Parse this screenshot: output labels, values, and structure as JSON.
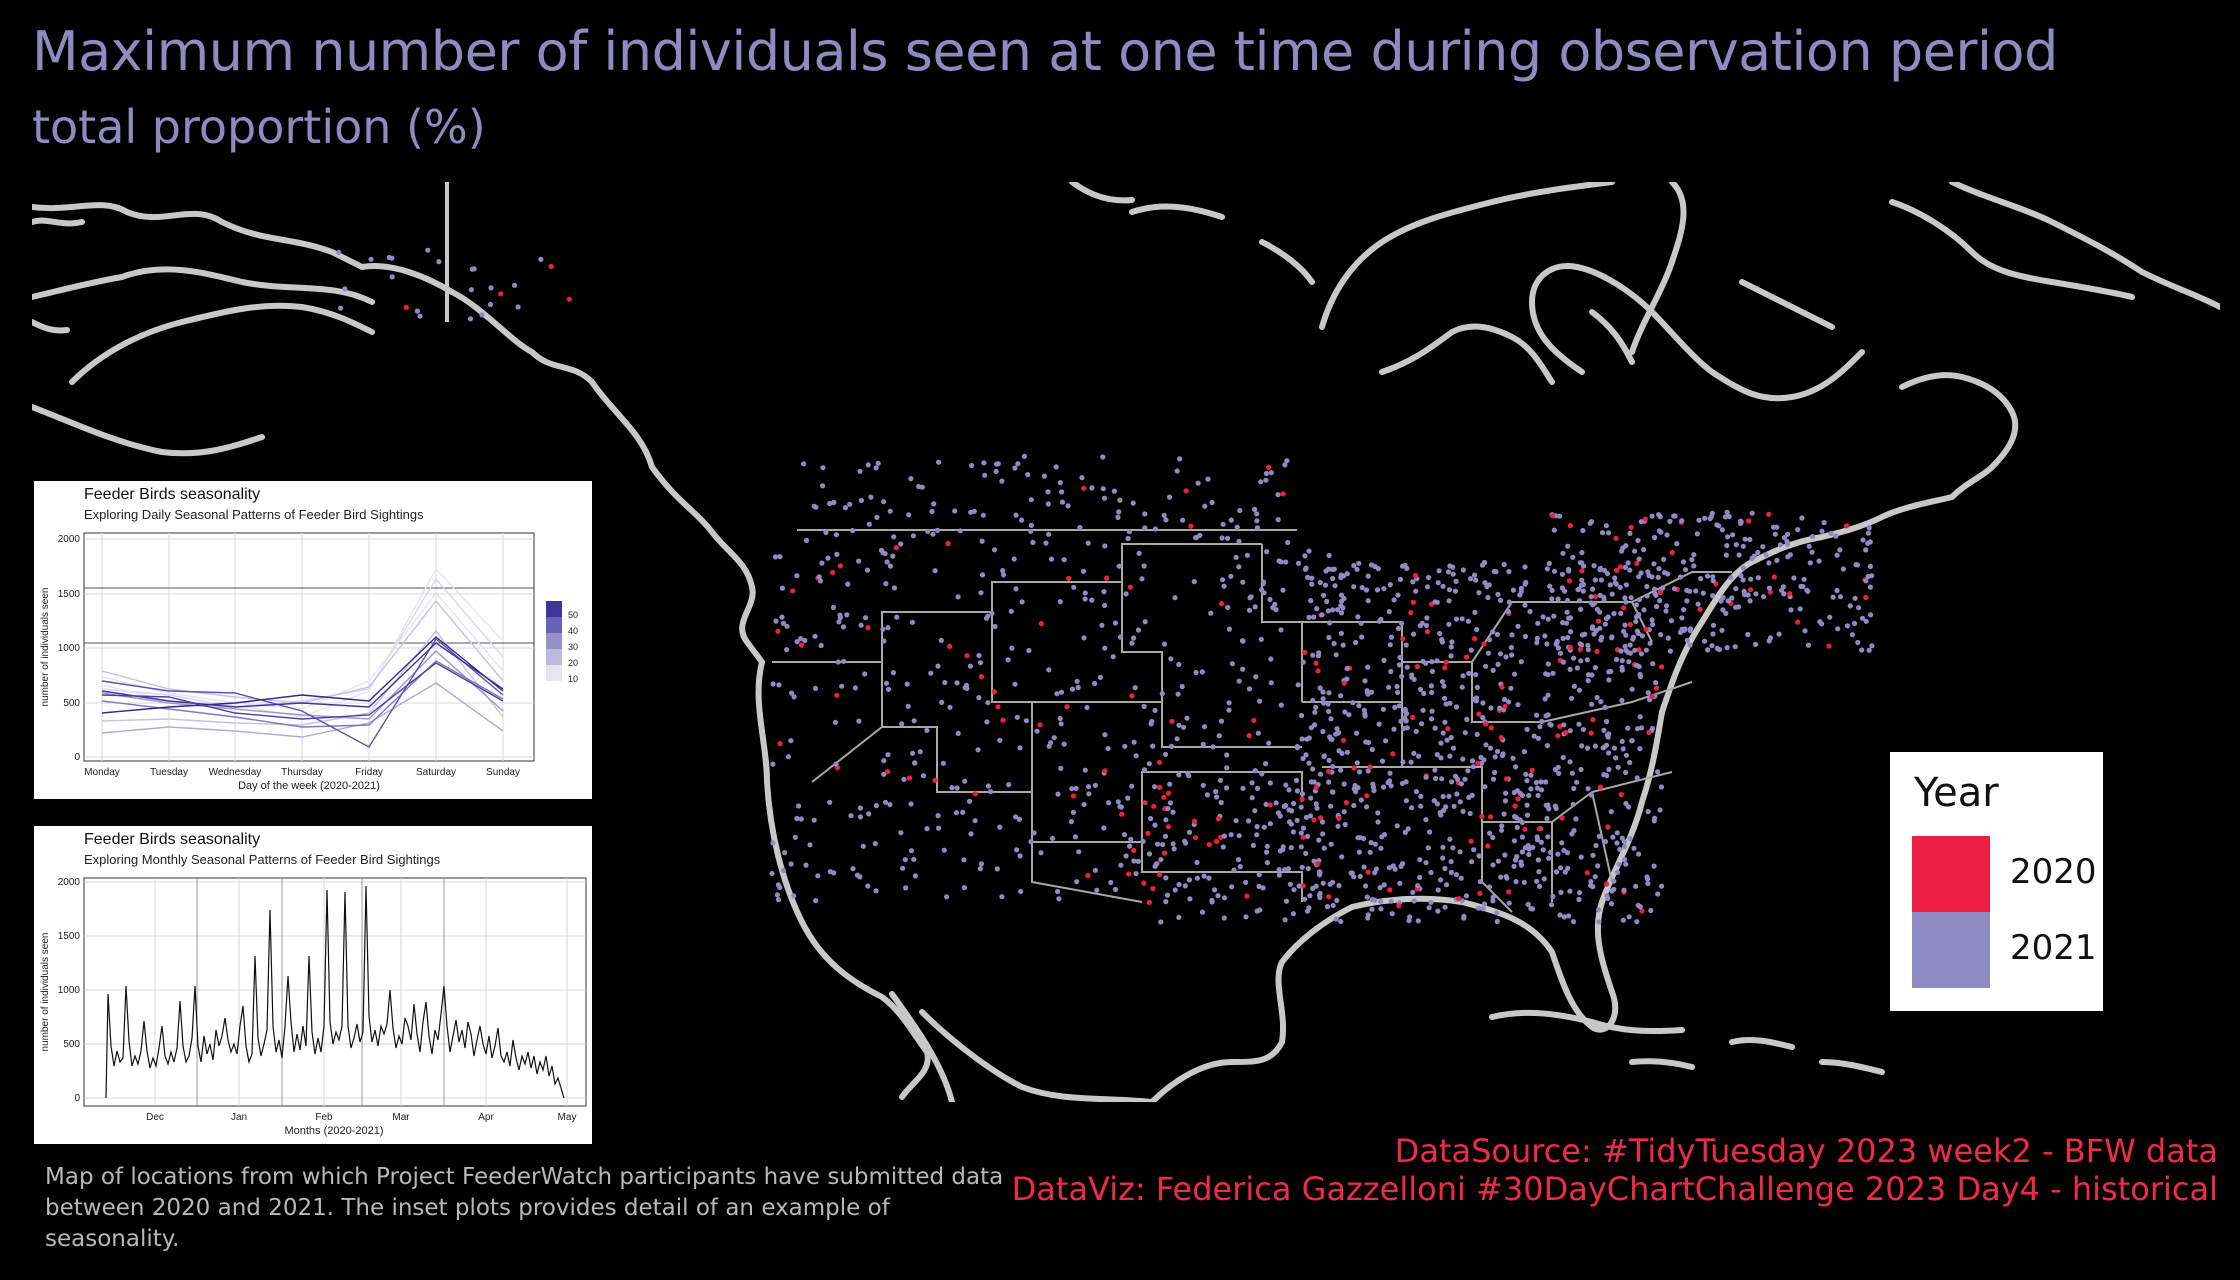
{
  "title": "Maximum number of individuals seen at one time during observation period",
  "subtitle": "total proportion (%)",
  "colors": {
    "background": "#000000",
    "title": "#8f8ac1",
    "coast": "#c8c8c8",
    "border": "#a8a8a8",
    "y2020": "#ef1f43",
    "y2021": "#8f8ac1",
    "source": "#ef2b48",
    "caption": "#b8b8b8"
  },
  "legend": {
    "title": "Year",
    "items": [
      {
        "label": "2020",
        "color": "#ef1f43"
      },
      {
        "label": "2021",
        "color": "#8f8ac1"
      }
    ]
  },
  "inset_daily": {
    "title": "Feeder Birds seasonality",
    "subtitle": "Exploring Daily Seasonal Patterns of Feeder Bird Sightings",
    "ylabel": "number of individuals seen",
    "xlabel": "Day of the week (2020-2021)",
    "yticks": [
      "2000",
      "1500",
      "1000",
      "500",
      "0"
    ],
    "xticks": [
      "Monday",
      "Tuesday",
      "Wednesday",
      "Thursday",
      "Friday",
      "Saturday",
      "Sunday"
    ],
    "scale_labels": [
      "50",
      "40",
      "30",
      "20",
      "10"
    ]
  },
  "inset_monthly": {
    "title": "Feeder Birds seasonality",
    "subtitle": "Exploring Monthly Seasonal Patterns of Feeder Bird Sightings",
    "ylabel": "number of individuals seen",
    "xlabel": "Months (2020-2021)",
    "yticks": [
      "2000",
      "1500",
      "1000",
      "500",
      "0"
    ],
    "xticks": [
      "Dec",
      "Jan",
      "Feb",
      "Mar",
      "Apr",
      "May"
    ]
  },
  "caption_line1": "Map of locations from which Project FeederWatch participants have submitted data",
  "caption_line2": "between 2020 and 2021. The inset plots provides detail of an example of seasonality.",
  "source_line1": "DataSource: #TidyTuesday 2023 week2 - BFW data",
  "source_line2": "DataViz: Federica Gazzelloni #30DayChartChallenge 2023 Day4 - historical"
}
